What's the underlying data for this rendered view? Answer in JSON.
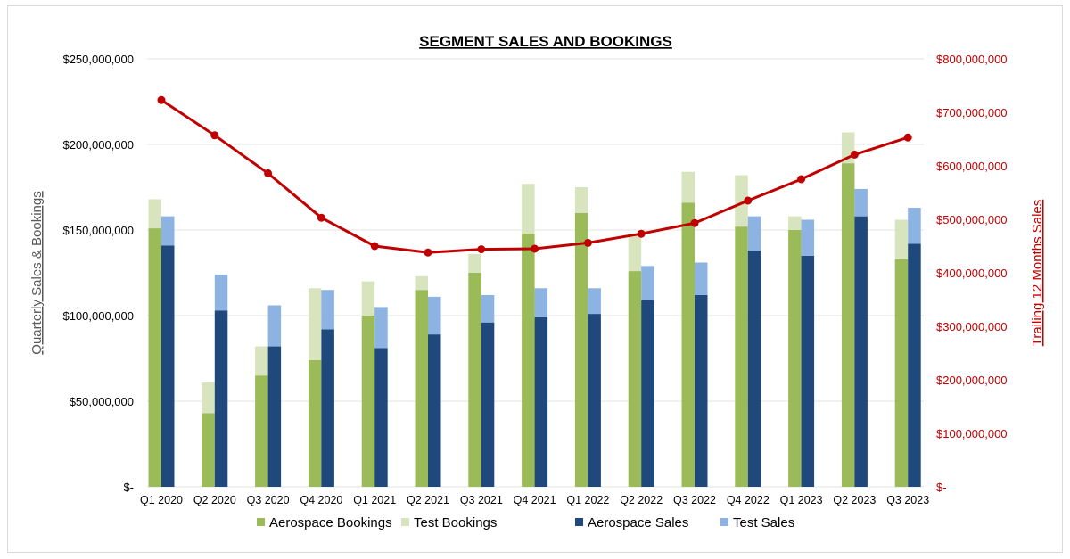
{
  "chart_data": {
    "type": "bar",
    "title": "SEGMENT SALES AND BOOKINGS",
    "ylabel": "Quarterly Sales & Bookings",
    "y2label": "Trailing 12 Months Sales",
    "ylim": [
      0,
      250000000
    ],
    "y2lim": [
      0,
      800000000
    ],
    "grid": true,
    "legend_position": "bottom",
    "y_ticks": [
      "$-",
      "$50,000,000",
      "$100,000,000",
      "$150,000,000",
      "$200,000,000",
      "$250,000,000"
    ],
    "y2_ticks": [
      "$-",
      "$100,000,000",
      "$200,000,000",
      "$300,000,000",
      "$400,000,000",
      "$500,000,000",
      "$600,000,000",
      "$700,000,000",
      "$800,000,000"
    ],
    "categories": [
      "Q1 2020",
      "Q2 2020",
      "Q3 2020",
      "Q4 2020",
      "Q1 2021",
      "Q2 2021",
      "Q3 2021",
      "Q4 2021",
      "Q1 2022",
      "Q2 2022",
      "Q3 2022",
      "Q4 2022",
      "Q1 2023",
      "Q2 2023",
      "Q3 2023"
    ],
    "series": [
      {
        "name": "Aerospace Bookings",
        "stack": "bookings",
        "color": "#9bbb59",
        "values": [
          151000000,
          43000000,
          65000000,
          74000000,
          100000000,
          115000000,
          125000000,
          148000000,
          160000000,
          126000000,
          166000000,
          152000000,
          150000000,
          189000000,
          133000000
        ]
      },
      {
        "name": "Test Bookings",
        "stack": "bookings",
        "color": "#d7e4bd",
        "values": [
          17000000,
          18000000,
          17000000,
          42000000,
          20000000,
          8000000,
          11000000,
          29000000,
          15000000,
          22000000,
          18000000,
          30000000,
          8000000,
          18000000,
          23000000
        ]
      },
      {
        "name": "Aerospace Sales",
        "stack": "sales",
        "color": "#1f497d",
        "values": [
          141000000,
          103000000,
          82000000,
          92000000,
          81000000,
          89000000,
          96000000,
          99000000,
          101000000,
          109000000,
          112000000,
          138000000,
          135000000,
          158000000,
          142000000
        ]
      },
      {
        "name": "Test Sales",
        "stack": "sales",
        "color": "#8db3e2",
        "values": [
          17000000,
          21000000,
          24000000,
          23000000,
          24000000,
          22000000,
          16000000,
          17000000,
          15000000,
          20000000,
          19000000,
          20000000,
          21000000,
          16000000,
          21000000
        ]
      }
    ],
    "line": {
      "axis": "right",
      "color": "#c00000",
      "values": [
        723000000,
        657000000,
        586000000,
        503000000,
        450000000,
        438000000,
        444000000,
        445000000,
        456000000,
        473000000,
        493000000,
        535000000,
        575000000,
        621000000,
        653000000
      ]
    }
  }
}
